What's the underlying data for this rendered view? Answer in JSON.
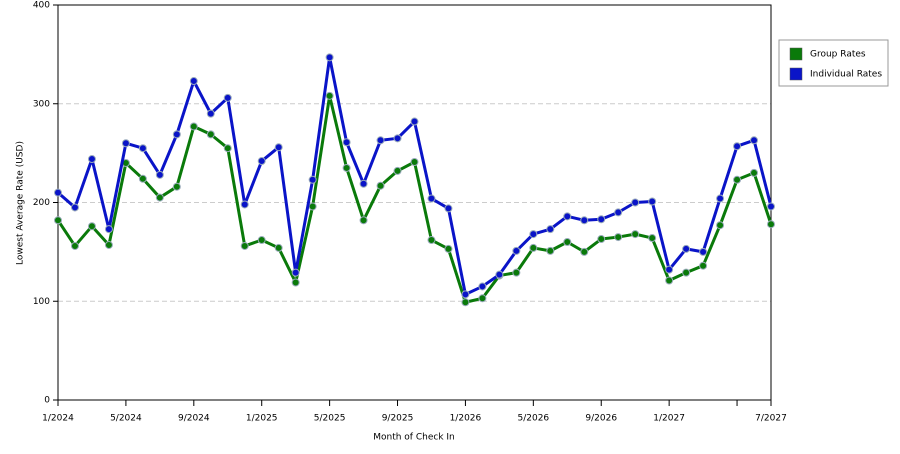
{
  "chart_data": {
    "type": "line",
    "x_label": "Month of Check In",
    "y_label": "Lowest Average Rate (USD)",
    "categories": [
      "1/2024",
      null,
      null,
      null,
      "5/2024",
      null,
      null,
      null,
      "9/2024",
      null,
      null,
      null,
      "1/2025",
      null,
      null,
      null,
      "5/2025",
      null,
      null,
      null,
      "9/2025",
      null,
      null,
      null,
      "1/2026",
      null,
      null,
      null,
      "5/2026",
      null,
      null,
      null,
      "9/2026",
      null,
      null,
      null,
      "1/2027",
      null,
      null,
      null,
      null,
      null,
      "7/2027"
    ],
    "series": [
      {
        "name": "Group Rates",
        "color": "#0a7a0a",
        "values": [
          182,
          156,
          176,
          157,
          240,
          224,
          205,
          216,
          277,
          269,
          255,
          156,
          162,
          154,
          119,
          196,
          308,
          235,
          182,
          217,
          232,
          241,
          162,
          153,
          99,
          103,
          126,
          129,
          154,
          151,
          160,
          150,
          163,
          165,
          168,
          164,
          121,
          129,
          136,
          177,
          223,
          230,
          178
        ]
      },
      {
        "name": "Individual Rates",
        "color": "#0a14c8",
        "values": [
          210,
          195,
          244,
          173,
          260,
          255,
          228,
          269,
          323,
          290,
          306,
          198,
          242,
          256,
          129,
          223,
          347,
          261,
          219,
          263,
          265,
          282,
          204,
          194,
          107,
          115,
          127,
          151,
          168,
          173,
          186,
          182,
          183,
          190,
          200,
          201,
          132,
          153,
          150,
          204,
          257,
          263,
          196
        ]
      }
    ],
    "ylim": [
      0,
      400
    ],
    "yticks": [
      0,
      100,
      200,
      300,
      400
    ],
    "grid": true
  }
}
